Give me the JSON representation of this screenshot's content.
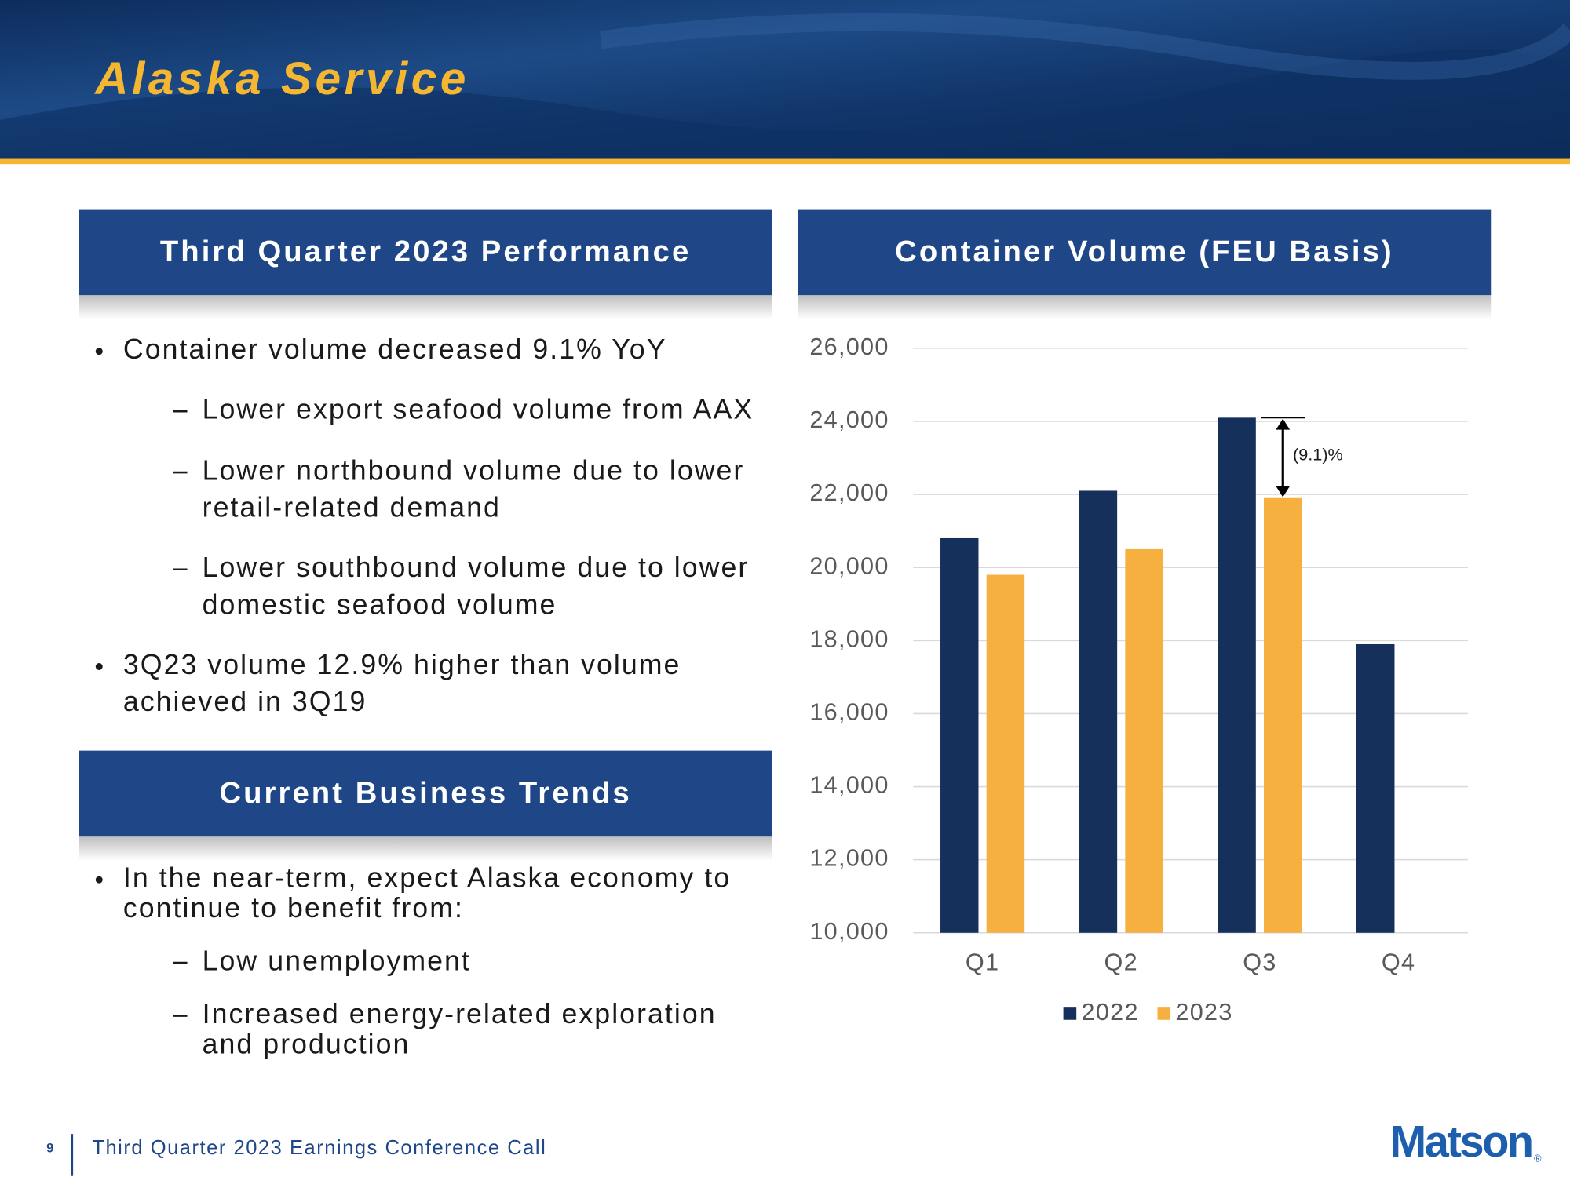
{
  "header": {
    "title": "Alaska Service"
  },
  "performance": {
    "heading": "Third Quarter 2023 Performance",
    "items": [
      {
        "level": 1,
        "lines": [
          "Container volume decreased 9.1% YoY"
        ]
      },
      {
        "level": 2,
        "lines": [
          "Lower export seafood volume from AAX"
        ]
      },
      {
        "level": 2,
        "lines": [
          "Lower northbound volume due to lower",
          "retail-related demand"
        ]
      },
      {
        "level": 2,
        "lines": [
          "Lower southbound volume due to lower",
          "domestic seafood volume"
        ]
      },
      {
        "level": 1,
        "lines": [
          "3Q23 volume 12.9% higher than volume",
          "achieved in 3Q19"
        ]
      }
    ]
  },
  "trends": {
    "heading": "Current Business Trends",
    "items": [
      {
        "level": 1,
        "lines": [
          "In the near-term, expect Alaska economy to",
          "continue to benefit from:"
        ]
      },
      {
        "level": 2,
        "lines": [
          "Low unemployment"
        ]
      },
      {
        "level": 2,
        "lines": [
          "Increased energy-related exploration",
          "and production"
        ]
      }
    ]
  },
  "chart_data": {
    "type": "bar",
    "title": "Container Volume (FEU Basis)",
    "categories": [
      "Q1",
      "Q2",
      "Q3",
      "Q4"
    ],
    "series": [
      {
        "name": "2022",
        "color": "#15305a",
        "values": [
          20800,
          22100,
          24100,
          17900
        ]
      },
      {
        "name": "2023",
        "color": "#f5b040",
        "values": [
          19800,
          20500,
          21900,
          null
        ]
      }
    ],
    "ylim": [
      10000,
      26000
    ],
    "yticks": [
      {
        "value": 10000,
        "label": "10,000"
      },
      {
        "value": 12000,
        "label": "12,000"
      },
      {
        "value": 14000,
        "label": "14,000"
      },
      {
        "value": 16000,
        "label": "16,000"
      },
      {
        "value": 18000,
        "label": "18,000"
      },
      {
        "value": 20000,
        "label": "20,000"
      },
      {
        "value": 22000,
        "label": "22,000"
      },
      {
        "value": 24000,
        "label": "24,000"
      },
      {
        "value": 26000,
        "label": "26,000"
      }
    ],
    "grid": true,
    "legend": "bottom",
    "annotation": "(9.1)%"
  },
  "footer": {
    "page": "9",
    "text": "Third Quarter 2023 Earnings Conference Call",
    "logo": "Matson",
    "logo_mark": "®"
  }
}
